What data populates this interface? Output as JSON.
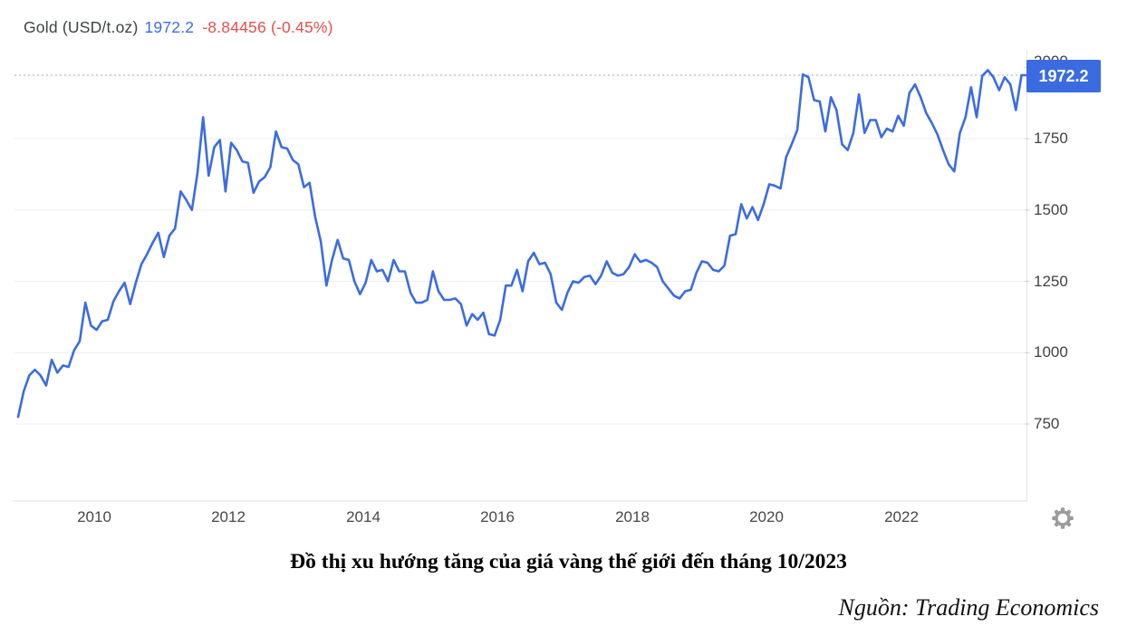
{
  "header": {
    "symbol": "Gold (USD/t.oz)",
    "price": "1972.2",
    "change": "-8.84456 (-0.45%)"
  },
  "badge": {
    "value": "1972.2"
  },
  "caption": {
    "title": "Đồ thị xu hướng tăng của giá vàng thế giới đến tháng 10/2023",
    "source": "Nguồn: Trading Economics"
  },
  "icons": {
    "settings": "gear-icon"
  },
  "colors": {
    "line_blue": "#3b6ce1",
    "badge_blue": "#3a6be0",
    "price_blue": "#3d6be2",
    "change_red": "#e4504c",
    "dotted_ref_line": "#8ea9de",
    "gridline": "#efefef",
    "axis_line": "#e2e2e2",
    "tick_text": "#424242"
  },
  "chart_data": {
    "type": "line",
    "title": "Gold (USD/t.oz)",
    "ylabel": "",
    "xlabel": "",
    "legend": "none",
    "grid": "horizontal",
    "frequency": "monthly",
    "start": "2008-11",
    "end": "2023-10",
    "last_value": 1972.2,
    "x_ticks": [
      2010,
      2012,
      2014,
      2016,
      2018,
      2020,
      2022
    ],
    "y_ticks": [
      2000,
      1750,
      1500,
      1250,
      1000,
      750
    ],
    "y_gridlines": [
      1750,
      1500,
      1250,
      1000,
      750
    ],
    "ylim": [
      620,
      2080
    ],
    "series": [
      {
        "name": "Gold price (USD/t.oz)",
        "values": [
          775,
          865,
          920,
          940,
          920,
          885,
          975,
          930,
          955,
          950,
          1008,
          1040,
          1175,
          1095,
          1080,
          1110,
          1115,
          1180,
          1215,
          1245,
          1170,
          1245,
          1310,
          1345,
          1385,
          1420,
          1335,
          1410,
          1435,
          1565,
          1535,
          1500,
          1630,
          1825,
          1620,
          1720,
          1745,
          1565,
          1735,
          1710,
          1670,
          1665,
          1560,
          1600,
          1615,
          1650,
          1775,
          1720,
          1715,
          1675,
          1660,
          1580,
          1595,
          1475,
          1390,
          1235,
          1325,
          1395,
          1330,
          1325,
          1250,
          1205,
          1245,
          1325,
          1285,
          1290,
          1250,
          1325,
          1285,
          1285,
          1210,
          1175,
          1175,
          1185,
          1285,
          1215,
          1185,
          1185,
          1190,
          1170,
          1095,
          1135,
          1115,
          1140,
          1065,
          1060,
          1115,
          1235,
          1235,
          1290,
          1215,
          1320,
          1350,
          1310,
          1315,
          1275,
          1175,
          1150,
          1210,
          1250,
          1245,
          1265,
          1270,
          1240,
          1270,
          1320,
          1280,
          1270,
          1275,
          1300,
          1345,
          1318,
          1325,
          1315,
          1300,
          1250,
          1225,
          1200,
          1190,
          1215,
          1220,
          1280,
          1320,
          1315,
          1290,
          1285,
          1305,
          1410,
          1415,
          1520,
          1470,
          1510,
          1465,
          1520,
          1590,
          1585,
          1575,
          1685,
          1730,
          1780,
          1975,
          1965,
          1885,
          1880,
          1775,
          1895,
          1850,
          1730,
          1710,
          1770,
          1905,
          1770,
          1815,
          1815,
          1755,
          1785,
          1775,
          1830,
          1795,
          1910,
          1940,
          1895,
          1840,
          1805,
          1765,
          1710,
          1660,
          1635,
          1770,
          1825,
          1930,
          1825,
          1970,
          1990,
          1965,
          1920,
          1965,
          1940,
          1850,
          1972.2
        ]
      }
    ]
  }
}
